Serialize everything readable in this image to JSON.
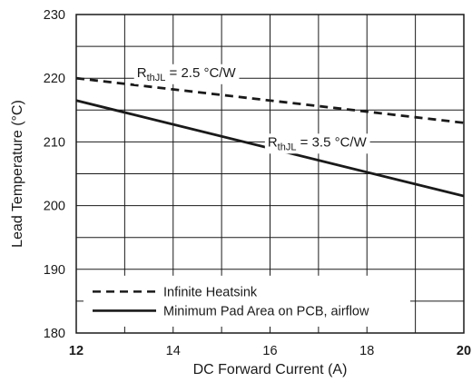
{
  "chart_data": {
    "type": "line",
    "title": "",
    "xlabel": "DC Forward Current (A)",
    "ylabel": "Lead Temperature (°C)",
    "xlim": [
      12,
      20
    ],
    "ylim": [
      180,
      230
    ],
    "x_ticks": [
      12,
      14,
      16,
      18,
      20
    ],
    "x_tick_labels": [
      "12",
      "14",
      "16",
      "18",
      "20"
    ],
    "y_ticks": [
      180,
      190,
      200,
      210,
      220,
      230
    ],
    "y_tick_labels": [
      "180",
      "190",
      "200",
      "210",
      "220",
      "230"
    ],
    "grid": true,
    "legend_position": "bottom-left",
    "series": [
      {
        "name": "Infinite Heatsink",
        "style": "dashed",
        "color": "#1a1a1a",
        "x": [
          12,
          20
        ],
        "y": [
          220.0,
          213.0
        ],
        "annotation": {
          "base": "R",
          "sub": "thJL",
          "rest": " = 2.5 °C/W"
        }
      },
      {
        "name": "Minimum Pad Area on PCB, airflow",
        "style": "solid",
        "color": "#1a1a1a",
        "x": [
          12,
          20
        ],
        "y": [
          216.5,
          201.5
        ],
        "annotation": {
          "base": "R",
          "sub": "thJL",
          "rest": " = 3.5 °C/W"
        }
      }
    ]
  }
}
